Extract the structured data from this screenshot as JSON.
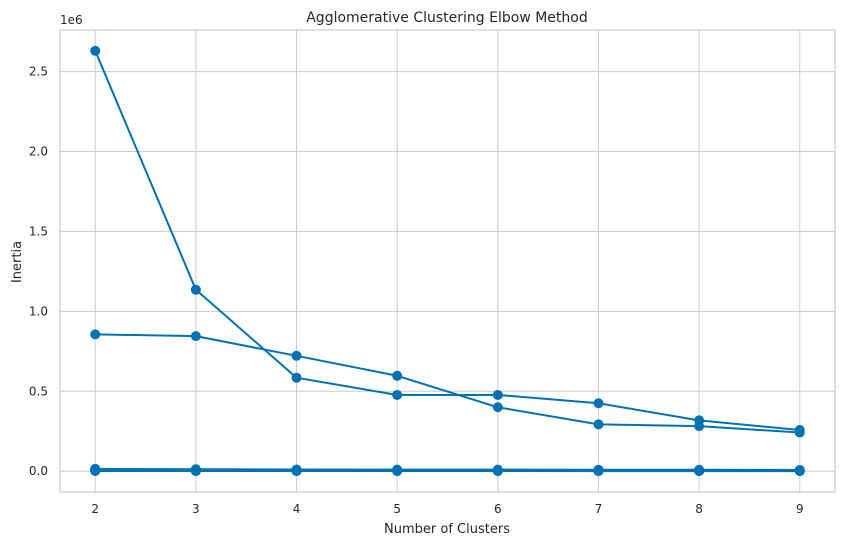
{
  "chart_data": {
    "type": "line",
    "title": "Agglomerative Clustering Elbow Method",
    "xlabel": "Number of Clusters",
    "ylabel": "Inertia",
    "y_offset_label": "1e6",
    "x": [
      2,
      3,
      4,
      5,
      6,
      7,
      8,
      9
    ],
    "xlim": [
      1.65,
      9.35
    ],
    "ylim": [
      -130000,
      2760000
    ],
    "x_ticks": [
      2,
      3,
      4,
      5,
      6,
      7,
      8,
      9
    ],
    "y_ticks": [
      0,
      500000,
      1000000,
      1500000,
      2000000,
      2500000
    ],
    "y_tick_labels": [
      "0.0",
      "0.5",
      "1.0",
      "1.5",
      "2.0",
      "2.5"
    ],
    "grid": true,
    "legend": "none",
    "line_color": "#0072b2",
    "series": [
      {
        "values": [
          2630000,
          1135000,
          585000,
          477000,
          477000,
          425000,
          318000,
          258000
        ]
      },
      {
        "values": [
          856000,
          845000,
          722000,
          597000,
          400000,
          293000,
          282000,
          242000
        ]
      },
      {
        "values": [
          15000,
          12000,
          11000,
          10000,
          10000,
          9000,
          9000,
          8000
        ]
      },
      {
        "values": [
          9000,
          8000,
          7000,
          7000,
          6000,
          6000,
          6000,
          5000
        ]
      },
      {
        "values": [
          5000,
          4500,
          4200,
          4000,
          3900,
          3800,
          3700,
          3600
        ]
      },
      {
        "values": [
          2500,
          2300,
          2200,
          2100,
          2000,
          1900,
          1850,
          1800
        ]
      },
      {
        "values": [
          1200,
          1100,
          1050,
          1000,
          980,
          960,
          940,
          920
        ]
      }
    ]
  }
}
